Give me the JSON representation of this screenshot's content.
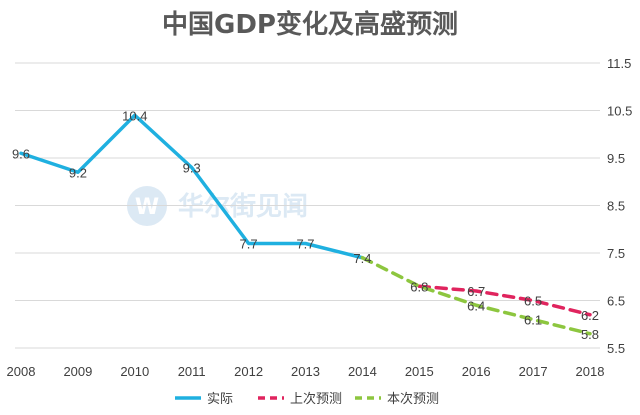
{
  "chart_data": {
    "type": "line",
    "title": "中国GDP变化及高盛预测",
    "x": [
      "2008",
      "2009",
      "2010",
      "2011",
      "2012",
      "2013",
      "2014",
      "2015",
      "2016",
      "2017",
      "2018"
    ],
    "yticks": [
      "5.5",
      "6.5",
      "7.5",
      "8.5",
      "9.5",
      "10.5",
      "11.5"
    ],
    "ylim": [
      5.5,
      11.5
    ],
    "grid": true,
    "legend_position": "bottom",
    "series": [
      {
        "name": "实际",
        "color": "#1fb0e0",
        "dash": "solid",
        "points": [
          {
            "x": "2008",
            "y": 9.6,
            "label": "9.6"
          },
          {
            "x": "2009",
            "y": 9.2,
            "label": "9.2"
          },
          {
            "x": "2010",
            "y": 10.4,
            "label": "10.4"
          },
          {
            "x": "2011",
            "y": 9.3,
            "label": "9.3"
          },
          {
            "x": "2012",
            "y": 7.7,
            "label": "7.7"
          },
          {
            "x": "2013",
            "y": 7.7,
            "label": "7.7"
          },
          {
            "x": "2014",
            "y": 7.4,
            "label": "7.4"
          }
        ]
      },
      {
        "name": "上次预测",
        "color": "#e0245e",
        "dash": "dashed",
        "points": [
          {
            "x": "2015",
            "y": 6.8,
            "label": "6.8"
          },
          {
            "x": "2016",
            "y": 6.7,
            "label": "6.7"
          },
          {
            "x": "2017",
            "y": 6.5,
            "label": "6.5"
          },
          {
            "x": "2018",
            "y": 6.2,
            "label": "6.2"
          }
        ]
      },
      {
        "name": "本次预测",
        "color": "#8dc63f",
        "dash": "dashed",
        "points": [
          {
            "x": "2014",
            "y": 7.4,
            "label": ""
          },
          {
            "x": "2015",
            "y": 6.8,
            "label": ""
          },
          {
            "x": "2016",
            "y": 6.4,
            "label": "6.4"
          },
          {
            "x": "2017",
            "y": 6.1,
            "label": "6.1"
          },
          {
            "x": "2018",
            "y": 5.8,
            "label": "5.8"
          }
        ]
      }
    ]
  },
  "watermark": {
    "text": "华尔街见闻",
    "logo_letter": "W"
  }
}
